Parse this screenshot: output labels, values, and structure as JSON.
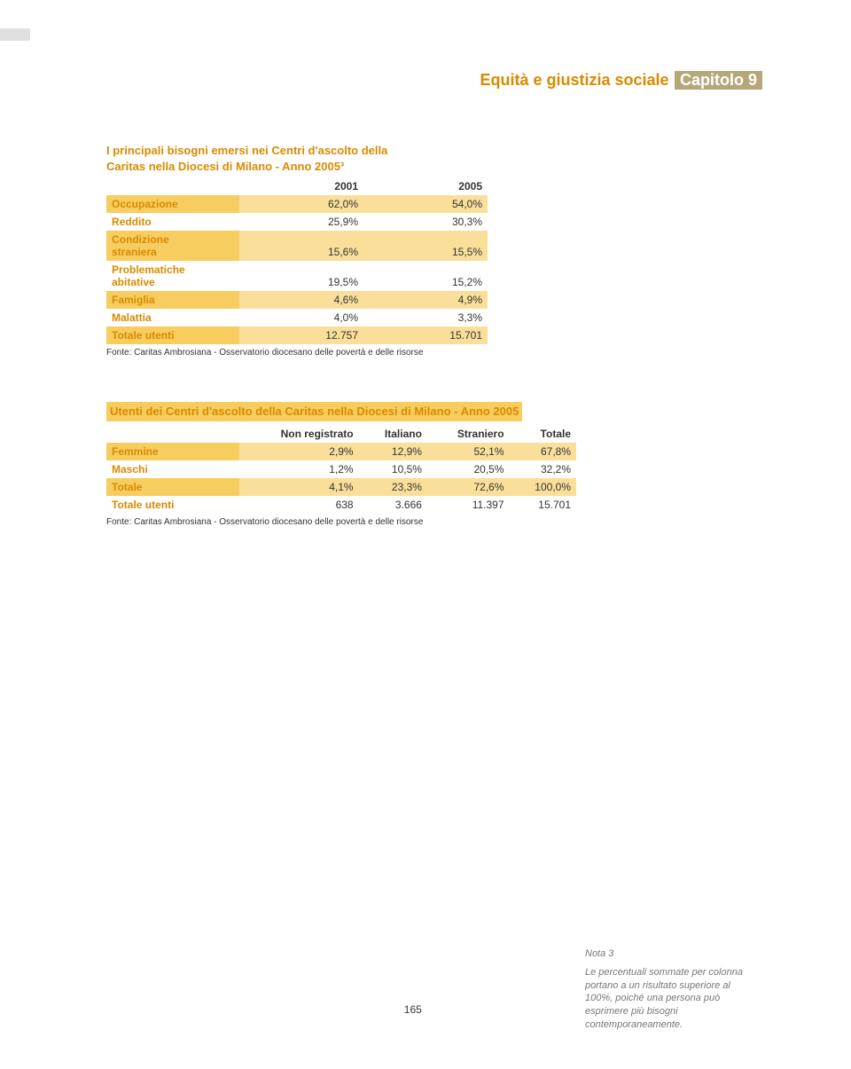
{
  "colors": {
    "accent": "#d98a00",
    "chapter_bg": "#b6a77a",
    "band_light": "#fadf9a",
    "band_mid": "#f7cd5f"
  },
  "header": {
    "chapter_title": "Equità e giustizia sociale",
    "chapter_label": "Capitolo 9"
  },
  "table1": {
    "title_line1": "I principali bisogni emersi nei Centri d'ascolto della",
    "title_line2": "Caritas nella Diocesi di Milano - Anno 2005³",
    "col1": "2001",
    "col2": "2005",
    "rows": [
      {
        "label": "Occupazione",
        "v1": "62,0%",
        "v2": "54,0%",
        "band": true
      },
      {
        "label": "Reddito",
        "v1": "25,9%",
        "v2": "30,3%",
        "band": false
      },
      {
        "label_line1": "Condizione",
        "label_line2": "straniera",
        "v1": "15,6%",
        "v2": "15,5%",
        "band": true,
        "twoLine": true
      },
      {
        "label_line1": "Problematiche",
        "label_line2": "abitative",
        "v1": "19,5%",
        "v2": "15,2%",
        "band": false,
        "twoLine": true
      },
      {
        "label": "Famiglia",
        "v1": "4,6%",
        "v2": "4,9%",
        "band": true
      },
      {
        "label": "Malattia",
        "v1": "4,0%",
        "v2": "3,3%",
        "band": false
      },
      {
        "label": "Totale utenti",
        "v1": "12.757",
        "v2": "15.701",
        "band": true
      }
    ],
    "source": "Fonte: Caritas Ambrosiana - Osservatorio diocesano delle povertà e delle risorse"
  },
  "table2": {
    "title": "Utenti dei Centri d'ascolto della Caritas nella Diocesi di Milano - Anno 2005",
    "cols": [
      "Non registrato",
      "Italiano",
      "Straniero",
      "Totale"
    ],
    "rows": [
      {
        "label": "Femmine",
        "v": [
          "2,9%",
          "12,9%",
          "52,1%",
          "67,8%"
        ],
        "band": true
      },
      {
        "label": "Maschi",
        "v": [
          "1,2%",
          "10,5%",
          "20,5%",
          "32,2%"
        ],
        "band": false
      },
      {
        "label": "Totale",
        "v": [
          "4,1%",
          "23,3%",
          "72,6%",
          "100,0%"
        ],
        "band": true
      },
      {
        "label": "Totale utenti",
        "v": [
          "638",
          "3.666",
          "11.397",
          "15.701"
        ],
        "band": false
      }
    ],
    "source": "Fonte: Caritas Ambrosiana - Osservatorio diocesano delle povertà e delle risorse"
  },
  "footer": {
    "page": "165",
    "note_title": "Nota 3",
    "note_body": "Le percentuali sommate per colonna portano a un risultato superiore al 100%, poiché una persona può esprimere più bisogni contemporaneamente."
  }
}
